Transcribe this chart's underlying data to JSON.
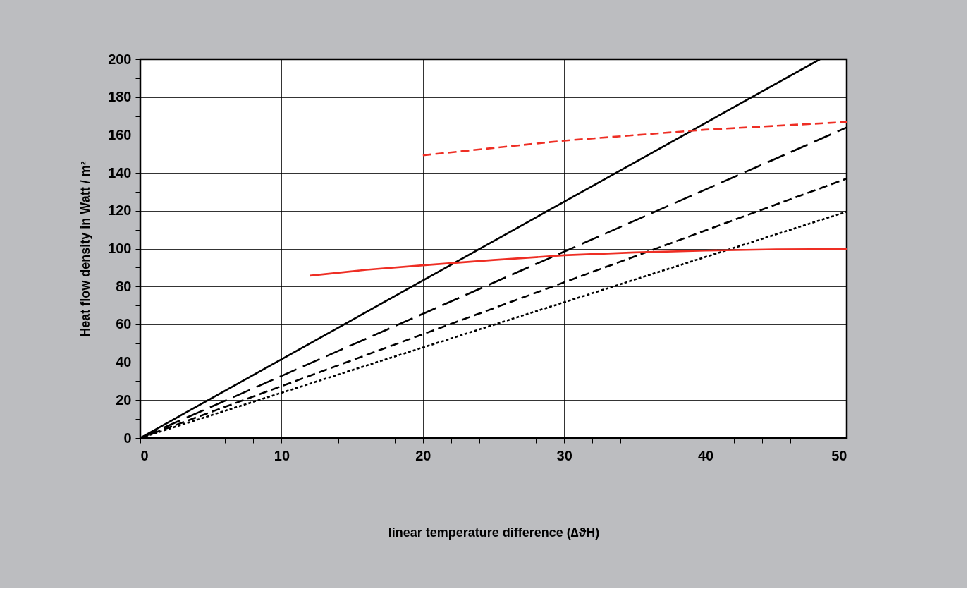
{
  "chart_data": {
    "type": "line",
    "xlabel": "linear temperature difference (∆ϑH)",
    "ylabel": "Heat flow density in Watt / m²",
    "xlim": [
      0,
      50
    ],
    "ylim": [
      0,
      200
    ],
    "xticks": [
      0,
      {
        "value": 2,
        "label": null
      },
      {
        "value": 4,
        "label": null
      },
      {
        "value": 6,
        "label": null
      },
      {
        "value": 8,
        "label": null
      },
      10,
      {
        "value": 12,
        "label": null
      },
      {
        "value": 14,
        "label": null
      },
      {
        "value": 16,
        "label": null
      },
      {
        "value": 18,
        "label": null
      },
      20,
      {
        "value": 22,
        "label": null
      },
      {
        "value": 24,
        "label": null
      },
      {
        "value": 26,
        "label": null
      },
      {
        "value": 28,
        "label": null
      },
      30,
      {
        "value": 32,
        "label": null
      },
      {
        "value": 34,
        "label": null
      },
      {
        "value": 36,
        "label": null
      },
      {
        "value": 38,
        "label": null
      },
      40,
      {
        "value": 42,
        "label": null
      },
      {
        "value": 44,
        "label": null
      },
      {
        "value": 46,
        "label": null
      },
      {
        "value": 48,
        "label": null
      },
      50
    ],
    "yticks": [
      0,
      {
        "value": 10,
        "label": null
      },
      20,
      {
        "value": 30,
        "label": null
      },
      40,
      {
        "value": 50,
        "label": null
      },
      60,
      {
        "value": 70,
        "label": null
      },
      80,
      {
        "value": 90,
        "label": null
      },
      100,
      {
        "value": 110,
        "label": null
      },
      120,
      {
        "value": 130,
        "label": null
      },
      140,
      {
        "value": 150,
        "label": null
      },
      160,
      {
        "value": 170,
        "label": null
      },
      180,
      {
        "value": 190,
        "label": null
      },
      200
    ],
    "grid": true,
    "marker": "none",
    "series": [
      {
        "color": "#000000",
        "line_style": "solid",
        "x": [
          0,
          48.1
        ],
        "values": [
          0,
          200
        ]
      },
      {
        "color": "#000000",
        "line_style": "long_dashed",
        "x": [
          0,
          50
        ],
        "values": [
          0,
          164
        ]
      },
      {
        "color": "#000000",
        "line_style": "dashed",
        "x": [
          0,
          50
        ],
        "values": [
          0,
          137
        ]
      },
      {
        "color": "#000000",
        "line_style": "dotted",
        "x": [
          0,
          50
        ],
        "values": [
          0,
          119.5
        ]
      },
      {
        "color": "#ee2e24",
        "line_style": "solid",
        "x": [
          12,
          16,
          20,
          25,
          30,
          35,
          40,
          45,
          50
        ],
        "values": [
          85.7,
          88.8,
          91.2,
          94,
          96.5,
          98,
          99,
          99.6,
          99.8
        ]
      },
      {
        "color": "#ee2e24",
        "line_style": "dashed",
        "x": [
          20,
          30,
          40,
          50
        ],
        "values": [
          149.3,
          157,
          162.8,
          166.9
        ]
      }
    ]
  }
}
